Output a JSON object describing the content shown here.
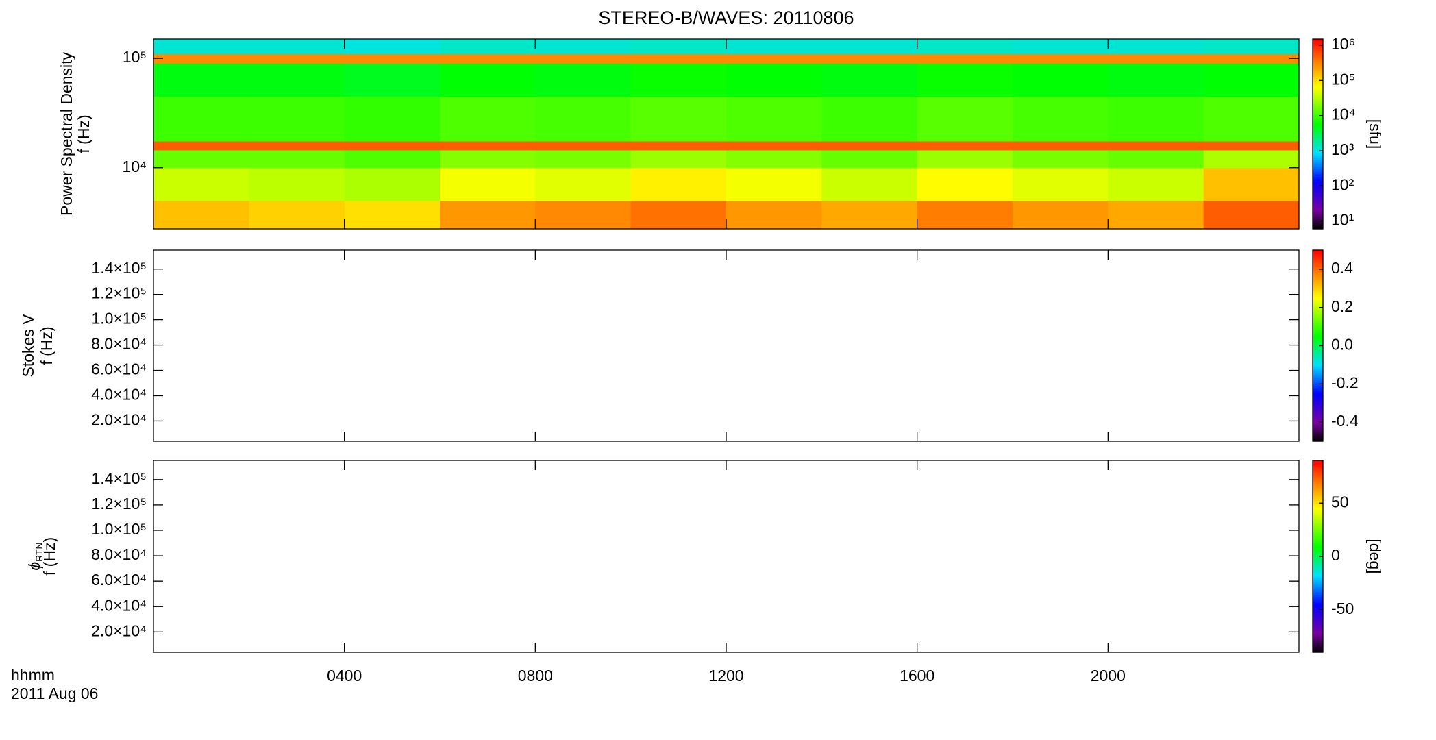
{
  "title": "STEREO-B/WAVES: 20110806",
  "time_label": "hhmm",
  "date_label": "2011 Aug 06",
  "xlim": [
    0,
    24
  ],
  "xticks": [
    {
      "value": 4,
      "label": "0400"
    },
    {
      "value": 8,
      "label": "0800"
    },
    {
      "value": 12,
      "label": "1200"
    },
    {
      "value": 16,
      "label": "1600"
    },
    {
      "value": 20,
      "label": "2000"
    }
  ],
  "chart_data": [
    {
      "type": "heatmap",
      "ylabel_title": "Power Spectral Density",
      "ylabel": "f (Hz)",
      "ylog": true,
      "ylim": [
        2760,
        150000
      ],
      "yticks": [
        {
          "value": 10000,
          "label": "10⁴"
        },
        {
          "value": 100000,
          "label": "10⁵"
        }
      ],
      "colormap": "rainbow",
      "zlog": true,
      "zlim": [
        6,
        1500000
      ],
      "zticks": [
        {
          "value": 10,
          "label": "10¹"
        },
        {
          "value": 100,
          "label": "10²"
        },
        {
          "value": 1000,
          "label": "10³"
        },
        {
          "value": 10000,
          "label": "10⁴"
        },
        {
          "value": 100000,
          "label": "10⁵"
        },
        {
          "value": 1000000,
          "label": "10⁶"
        }
      ],
      "zlabel": "[sfu]",
      "x_bins": [
        0,
        2,
        4,
        6,
        8,
        10,
        12,
        14,
        16,
        18,
        20,
        22,
        24
      ],
      "y_bins": [
        2760,
        5000,
        10000,
        14500,
        17500,
        45000,
        90000,
        110000,
        150000
      ],
      "values": [
        [
          150000,
          120000,
          100000,
          250000,
          300000,
          400000,
          250000,
          200000,
          350000,
          250000,
          200000,
          500000
        ],
        [
          40000,
          35000,
          30000,
          60000,
          50000,
          80000,
          60000,
          40000,
          70000,
          50000,
          40000,
          150000
        ],
        [
          15000,
          15000,
          12000,
          20000,
          18000,
          25000,
          20000,
          15000,
          25000,
          18000,
          15000,
          30000
        ],
        [
          500000,
          500000,
          500000,
          500000,
          500000,
          500000,
          500000,
          500000,
          500000,
          500000,
          500000,
          500000
        ],
        [
          10000,
          10000,
          9000,
          12000,
          11000,
          13000,
          12000,
          10000,
          13000,
          11000,
          10000,
          12000
        ],
        [
          5000,
          5000,
          4500,
          5500,
          5000,
          6000,
          5500,
          5000,
          6000,
          5500,
          5000,
          5500
        ],
        [
          300000,
          300000,
          300000,
          300000,
          300000,
          300000,
          300000,
          300000,
          300000,
          300000,
          300000,
          300000
        ],
        [
          1200,
          1200,
          1100,
          1300,
          1200,
          1300,
          1200,
          1200,
          1300,
          1200,
          1200,
          1300
        ]
      ]
    },
    {
      "type": "heatmap",
      "ylabel_title": "Stokes V",
      "ylabel": "f (Hz)",
      "ylim": [
        4000,
        155000
      ],
      "yticks": [
        {
          "value": 20000,
          "label": "2.0×10⁴"
        },
        {
          "value": 40000,
          "label": "4.0×10⁴"
        },
        {
          "value": 60000,
          "label": "6.0×10⁴"
        },
        {
          "value": 80000,
          "label": "8.0×10⁴"
        },
        {
          "value": 100000,
          "label": "1.0×10⁵"
        },
        {
          "value": 120000,
          "label": "1.2×10⁵"
        },
        {
          "value": 140000,
          "label": "1.4×10⁵"
        }
      ],
      "colormap": "rainbow",
      "zlim": [
        -0.5,
        0.5
      ],
      "zticks": [
        -0.4,
        -0.2,
        {
          "value": 0,
          "label": "0.0"
        },
        0.2,
        0.4
      ]
    },
    {
      "type": "heatmap",
      "ylabel_title": "ϕ",
      "ylabel_subscript": "RTN",
      "ylabel": "f (Hz)",
      "ylim": [
        4000,
        155000
      ],
      "yticks": [
        {
          "value": 20000,
          "label": "2.0×10⁴"
        },
        {
          "value": 40000,
          "label": "4.0×10⁴"
        },
        {
          "value": 60000,
          "label": "6.0×10⁴"
        },
        {
          "value": 80000,
          "label": "8.0×10⁴"
        },
        {
          "value": 100000,
          "label": "1.0×10⁵"
        },
        {
          "value": 120000,
          "label": "1.2×10⁵"
        },
        {
          "value": 140000,
          "label": "1.4×10⁵"
        }
      ],
      "colormap": "rainbow",
      "zlim": [
        -90,
        90
      ],
      "zticks": [
        -50,
        0,
        50
      ],
      "zlabel": "[deg]"
    }
  ]
}
